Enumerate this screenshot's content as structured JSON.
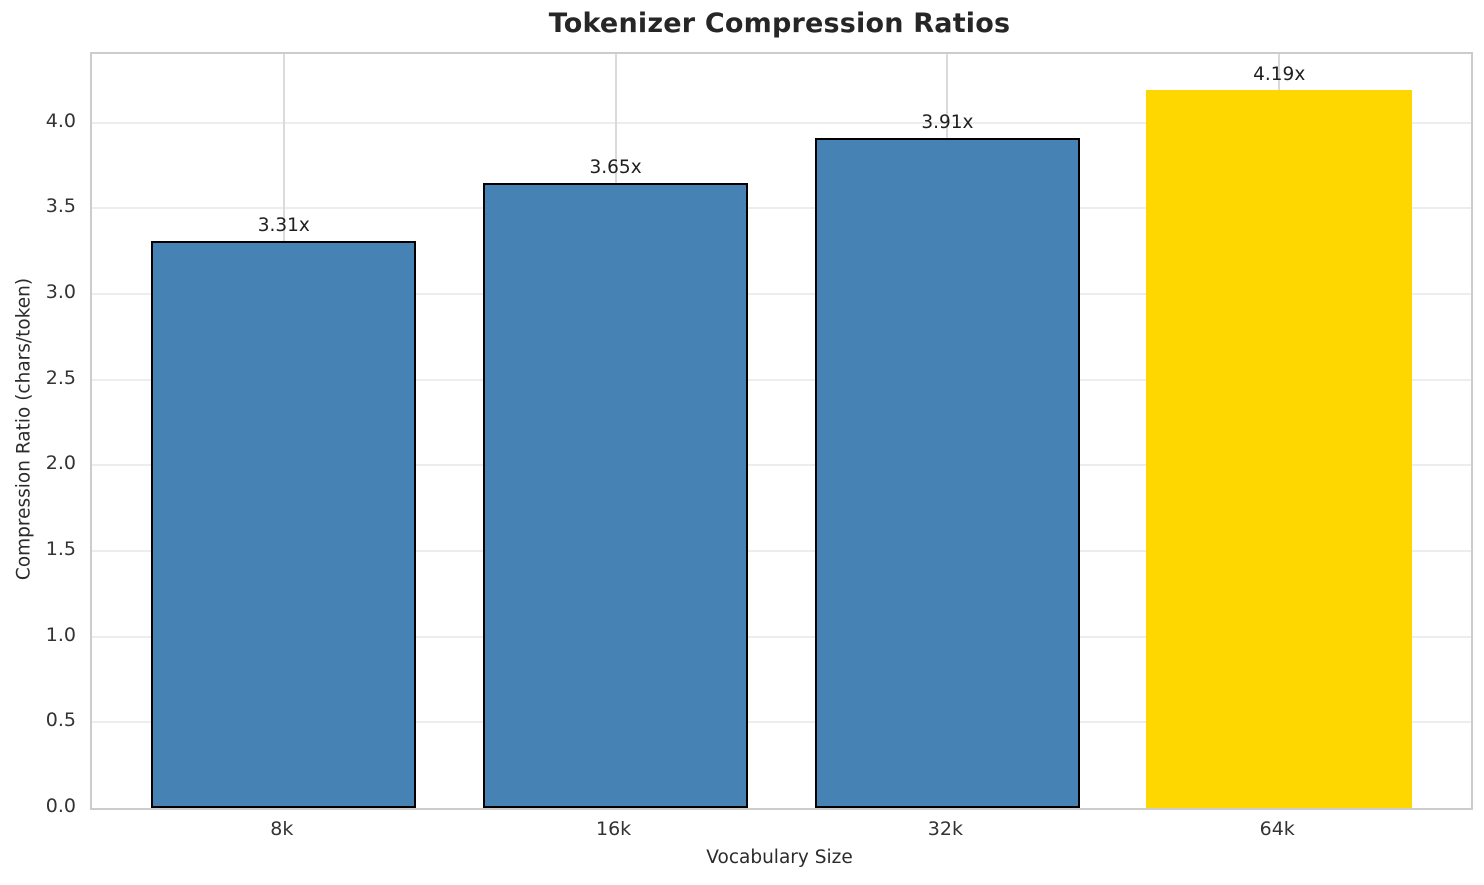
{
  "chart_data": {
    "type": "bar",
    "title": "Tokenizer Compression Ratios",
    "xlabel": "Vocabulary Size",
    "ylabel": "Compression Ratio (chars/token)",
    "categories": [
      "8k",
      "16k",
      "32k",
      "64k"
    ],
    "values": [
      3.31,
      3.65,
      3.91,
      4.19
    ],
    "bar_labels": [
      "3.31x",
      "3.65x",
      "3.91x",
      "4.19x"
    ],
    "series": [
      {
        "name": "Compression Ratio",
        "values": [
          3.31,
          3.65,
          3.91,
          4.19
        ]
      }
    ],
    "bar_colors": [
      "#4682B4",
      "#4682B4",
      "#4682B4",
      "#FFD700"
    ],
    "bar_edge_colors": [
      "#000000",
      "#000000",
      "#000000",
      "none"
    ],
    "highlighted_category": "64k",
    "highlight_color": "#FFD700",
    "base_color": "#4682B4",
    "ylim": [
      0,
      4.4
    ],
    "yticks": [
      0,
      0.5,
      1,
      1.5,
      2,
      2.5,
      3,
      3.5,
      4
    ],
    "ytick_labels": [
      "0.0",
      "0.5",
      "1.0",
      "1.5",
      "2.0",
      "2.5",
      "3.0",
      "3.5",
      "4.0"
    ],
    "grid": true,
    "legend": false
  }
}
